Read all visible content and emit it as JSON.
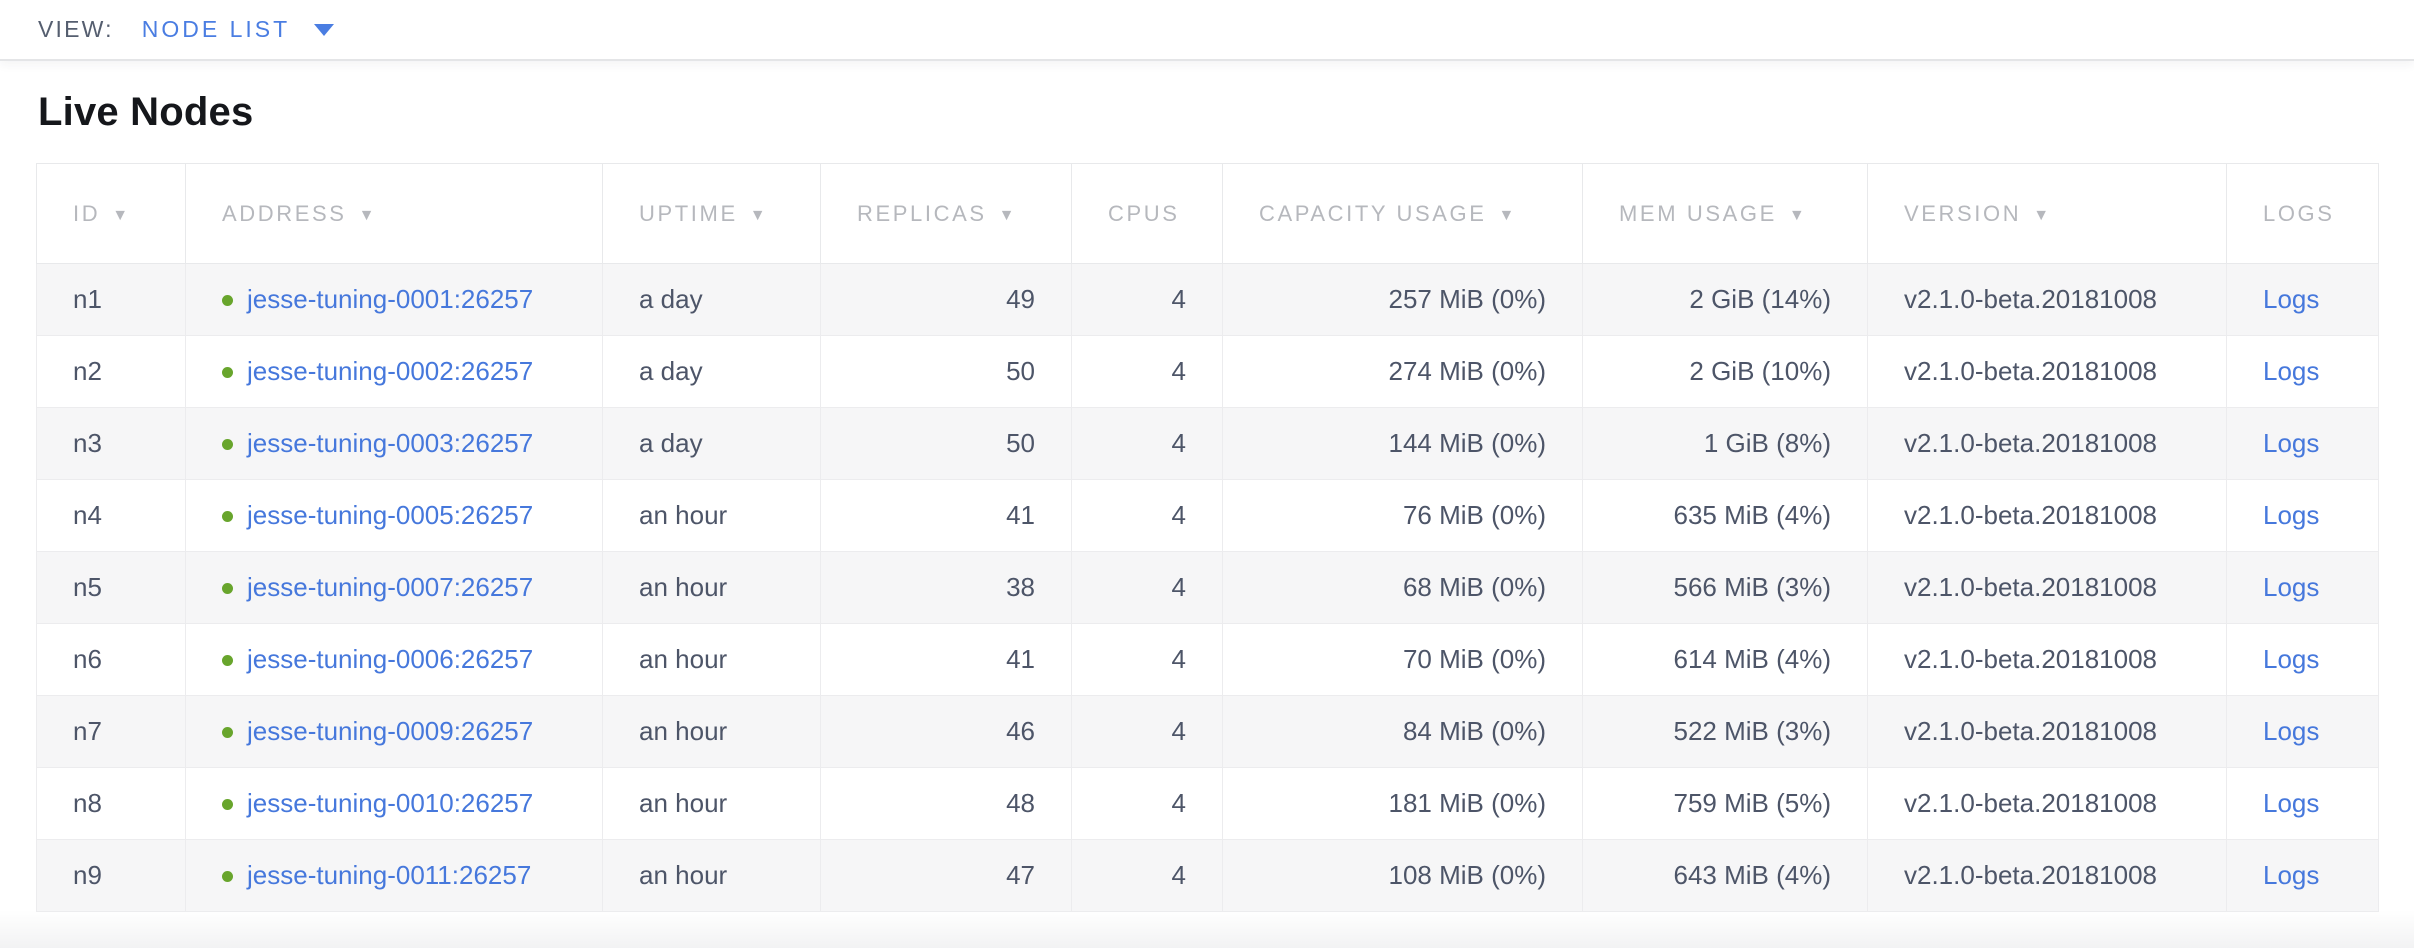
{
  "toolbar": {
    "view_label": "VIEW:",
    "view_value": "NODE LIST",
    "caret_icon": "caret-down"
  },
  "page": {
    "title": "Live Nodes"
  },
  "table": {
    "sort_indicator": "▼",
    "columns": [
      {
        "key": "id",
        "label": "ID",
        "sortable": true,
        "align": "left"
      },
      {
        "key": "address",
        "label": "ADDRESS",
        "sortable": true,
        "align": "left"
      },
      {
        "key": "uptime",
        "label": "UPTIME",
        "sortable": true,
        "align": "left"
      },
      {
        "key": "replicas",
        "label": "REPLICAS",
        "sortable": true,
        "align": "right"
      },
      {
        "key": "cpus",
        "label": "CPUS",
        "sortable": false,
        "align": "right"
      },
      {
        "key": "capacity",
        "label": "CAPACITY USAGE",
        "sortable": true,
        "align": "right"
      },
      {
        "key": "mem",
        "label": "MEM USAGE",
        "sortable": true,
        "align": "right"
      },
      {
        "key": "version",
        "label": "VERSION",
        "sortable": true,
        "align": "left"
      },
      {
        "key": "logs",
        "label": "LOGS",
        "sortable": false,
        "align": "left"
      }
    ],
    "rows": [
      {
        "id": "n1",
        "status": "healthy",
        "address": "jesse-tuning-0001:26257",
        "uptime": "a day",
        "replicas": "49",
        "cpus": "4",
        "capacity": "257 MiB (0%)",
        "mem": "2 GiB (14%)",
        "version": "v2.1.0-beta.20181008",
        "logs": "Logs"
      },
      {
        "id": "n2",
        "status": "healthy",
        "address": "jesse-tuning-0002:26257",
        "uptime": "a day",
        "replicas": "50",
        "cpus": "4",
        "capacity": "274 MiB (0%)",
        "mem": "2 GiB (10%)",
        "version": "v2.1.0-beta.20181008",
        "logs": "Logs"
      },
      {
        "id": "n3",
        "status": "healthy",
        "address": "jesse-tuning-0003:26257",
        "uptime": "a day",
        "replicas": "50",
        "cpus": "4",
        "capacity": "144 MiB (0%)",
        "mem": "1 GiB (8%)",
        "version": "v2.1.0-beta.20181008",
        "logs": "Logs"
      },
      {
        "id": "n4",
        "status": "healthy",
        "address": "jesse-tuning-0005:26257",
        "uptime": "an hour",
        "replicas": "41",
        "cpus": "4",
        "capacity": "76 MiB (0%)",
        "mem": "635 MiB (4%)",
        "version": "v2.1.0-beta.20181008",
        "logs": "Logs"
      },
      {
        "id": "n5",
        "status": "healthy",
        "address": "jesse-tuning-0007:26257",
        "uptime": "an hour",
        "replicas": "38",
        "cpus": "4",
        "capacity": "68 MiB (0%)",
        "mem": "566 MiB (3%)",
        "version": "v2.1.0-beta.20181008",
        "logs": "Logs"
      },
      {
        "id": "n6",
        "status": "healthy",
        "address": "jesse-tuning-0006:26257",
        "uptime": "an hour",
        "replicas": "41",
        "cpus": "4",
        "capacity": "70 MiB (0%)",
        "mem": "614 MiB (4%)",
        "version": "v2.1.0-beta.20181008",
        "logs": "Logs"
      },
      {
        "id": "n7",
        "status": "healthy",
        "address": "jesse-tuning-0009:26257",
        "uptime": "an hour",
        "replicas": "46",
        "cpus": "4",
        "capacity": "84 MiB (0%)",
        "mem": "522 MiB (3%)",
        "version": "v2.1.0-beta.20181008",
        "logs": "Logs"
      },
      {
        "id": "n8",
        "status": "healthy",
        "address": "jesse-tuning-0010:26257",
        "uptime": "an hour",
        "replicas": "48",
        "cpus": "4",
        "capacity": "181 MiB (0%)",
        "mem": "759 MiB (5%)",
        "version": "v2.1.0-beta.20181008",
        "logs": "Logs"
      },
      {
        "id": "n9",
        "status": "healthy",
        "address": "jesse-tuning-0011:26257",
        "uptime": "an hour",
        "replicas": "47",
        "cpus": "4",
        "capacity": "108 MiB (0%)",
        "mem": "643 MiB (4%)",
        "version": "v2.1.0-beta.20181008",
        "logs": "Logs"
      }
    ]
  },
  "colors": {
    "accent_blue": "#4a7de2",
    "link_blue": "#4678dc",
    "status_green": "#68a52c",
    "header_gray": "#b6b8bd",
    "cell_text": "#4d5568",
    "row_stripe": "#f6f6f7",
    "border": "#e8e9eb"
  }
}
